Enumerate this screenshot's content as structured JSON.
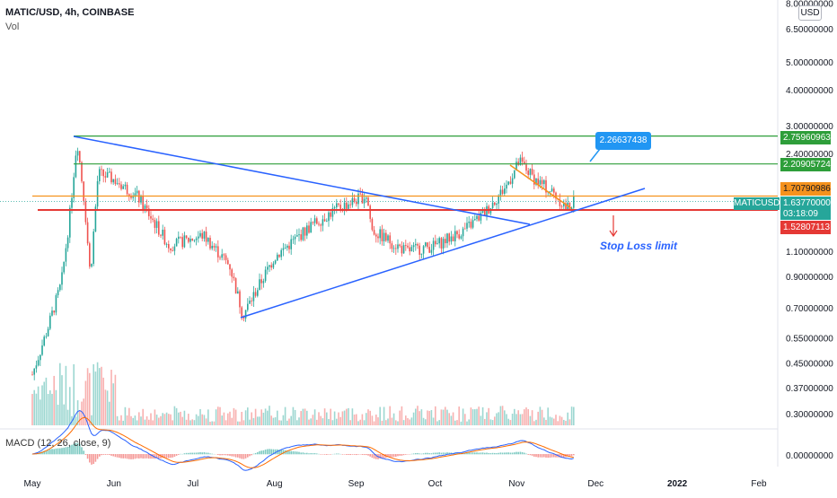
{
  "header": {
    "title": "MATIC/USD, 4h, COINBASE",
    "volume_label": "Vol",
    "macd_label": "MACD (12, 26, close, 9)",
    "currency_badge": "USD"
  },
  "price_tags": {
    "green_high": "2.75960963",
    "green_mid": "2.20905724",
    "orange": "1.70790986",
    "current_symbol": "MATICUSD",
    "current_price": "1.63770000",
    "countdown": "03:18:09",
    "red": "1.52807113"
  },
  "annotations": {
    "callout_value": "2.26637438",
    "stop_loss_text": "Stop Loss limit"
  },
  "colors": {
    "up": "#26a69a",
    "down": "#ef5350",
    "green_line": "#2e9e3a",
    "orange_line": "#f5921d",
    "red_line": "#e53935",
    "trend_line": "#2962ff"
  },
  "chart_data": {
    "type": "candlestick",
    "y_scale": "log",
    "y_ticks": [
      "8.00000000",
      "6.50000000",
      "5.00000000",
      "4.00000000",
      "3.00000000",
      "2.40000000",
      "1.10000000",
      "0.90000000",
      "0.70000000",
      "0.55000000",
      "0.45000000",
      "0.37000000",
      "0.30000000"
    ],
    "x_ticks": [
      "May",
      "Jun",
      "Jul",
      "Aug",
      "Sep",
      "Oct",
      "Nov",
      "Dec",
      "2022",
      "Feb"
    ],
    "macd_tick": "0.00000000",
    "horizontal_levels": [
      {
        "price": 2.75960963,
        "color": "green"
      },
      {
        "price": 2.20905724,
        "color": "green"
      },
      {
        "price": 1.70790986,
        "color": "orange"
      },
      {
        "price": 1.52807113,
        "color": "red"
      }
    ],
    "approx_path": [
      {
        "date": "2021-05-01",
        "price": 0.41
      },
      {
        "date": "2021-05-07",
        "price": 0.6
      },
      {
        "date": "2021-05-12",
        "price": 0.85
      },
      {
        "date": "2021-05-15",
        "price": 1.4
      },
      {
        "date": "2021-05-18",
        "price": 2.7
      },
      {
        "date": "2021-05-21",
        "price": 1.55
      },
      {
        "date": "2021-05-23",
        "price": 0.9
      },
      {
        "date": "2021-05-26",
        "price": 2.05
      },
      {
        "date": "2021-06-01",
        "price": 1.95
      },
      {
        "date": "2021-06-10",
        "price": 1.7
      },
      {
        "date": "2021-06-22",
        "price": 1.15
      },
      {
        "date": "2021-07-05",
        "price": 1.25
      },
      {
        "date": "2021-07-15",
        "price": 0.98
      },
      {
        "date": "2021-07-20",
        "price": 0.66
      },
      {
        "date": "2021-08-01",
        "price": 1.05
      },
      {
        "date": "2021-08-15",
        "price": 1.35
      },
      {
        "date": "2021-08-25",
        "price": 1.55
      },
      {
        "date": "2021-09-05",
        "price": 1.72
      },
      {
        "date": "2021-09-07",
        "price": 1.3
      },
      {
        "date": "2021-09-20",
        "price": 1.1
      },
      {
        "date": "2021-10-01",
        "price": 1.15
      },
      {
        "date": "2021-10-12",
        "price": 1.3
      },
      {
        "date": "2021-10-20",
        "price": 1.5
      },
      {
        "date": "2021-10-28",
        "price": 1.85
      },
      {
        "date": "2021-11-02",
        "price": 2.25
      },
      {
        "date": "2021-11-08",
        "price": 1.95
      },
      {
        "date": "2021-11-15",
        "price": 1.75
      },
      {
        "date": "2021-11-20",
        "price": 1.55
      },
      {
        "date": "2021-11-23",
        "price": 1.64
      }
    ]
  }
}
